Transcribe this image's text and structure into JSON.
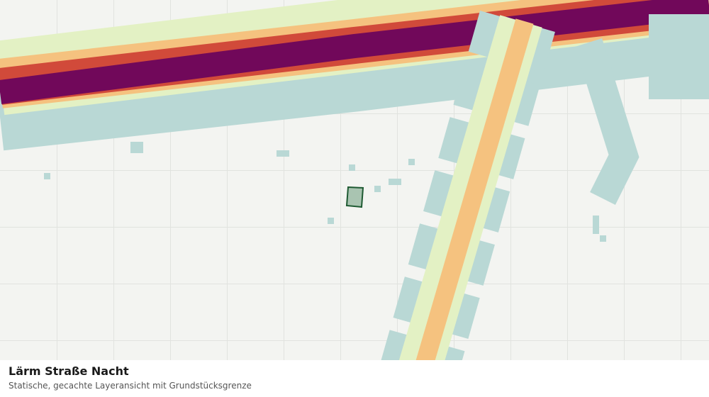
{
  "map": {
    "title": "Lärm Straße Nacht",
    "subtitle": "Statische, gecachte Layeransicht mit Grundstücksgrenze"
  }
}
